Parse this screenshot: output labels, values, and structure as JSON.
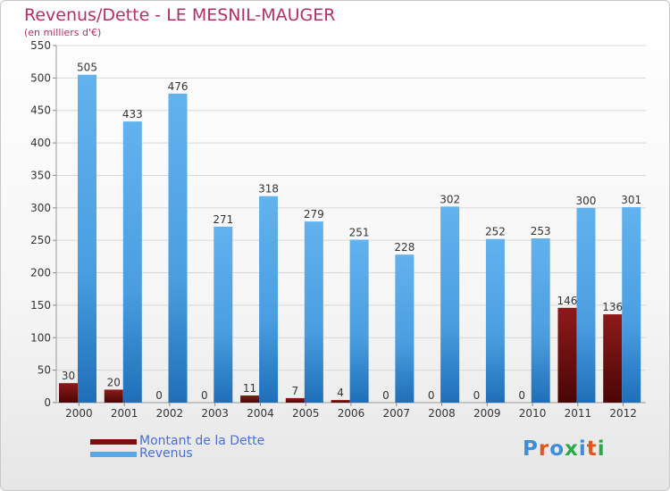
{
  "title": "Revenus/Dette - LE MESNIL-MAUGER",
  "subtitle": "(en milliers d'€)",
  "legend": {
    "debt_label": "Montant de la Dette",
    "revenue_label": "Revenus"
  },
  "logo": {
    "text": "Proxiti"
  },
  "colors": {
    "debt": "#7a1010",
    "revenue": "#58a8e6",
    "title": "#b0306a",
    "legend_text": "#4a6fd0"
  },
  "chart_data": {
    "type": "bar",
    "categories": [
      "2000",
      "2001",
      "2002",
      "2003",
      "2004",
      "2005",
      "2006",
      "2007",
      "2008",
      "2009",
      "2010",
      "2011",
      "2012"
    ],
    "series": [
      {
        "name": "Montant de la Dette",
        "values": [
          30,
          20,
          0,
          0,
          11,
          7,
          4,
          0,
          0,
          0,
          0,
          146,
          136
        ]
      },
      {
        "name": "Revenus",
        "values": [
          505,
          433,
          476,
          271,
          318,
          279,
          251,
          228,
          302,
          252,
          253,
          300,
          301
        ]
      }
    ],
    "yticks": [
      0,
      50,
      100,
      150,
      200,
      250,
      300,
      350,
      400,
      450,
      500,
      550
    ],
    "ylim": [
      0,
      550
    ],
    "grid": true,
    "legend_position": "bottom-left"
  }
}
